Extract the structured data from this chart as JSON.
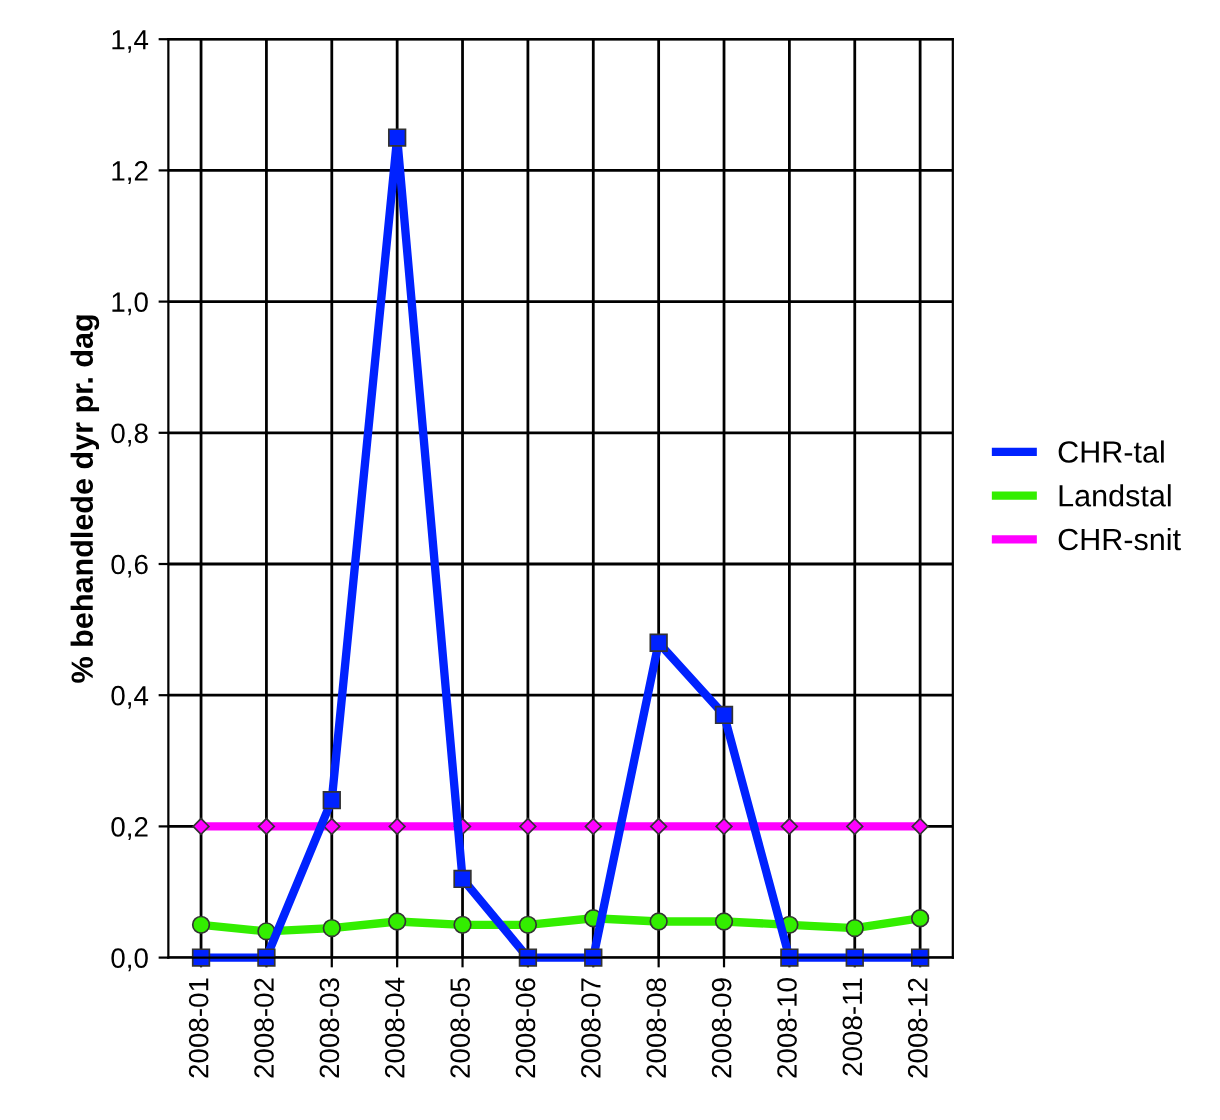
{
  "chart_data": {
    "type": "line",
    "ylabel": "% behandlede dyr pr. dag",
    "categories": [
      "2008-01",
      "2008-02",
      "2008-03",
      "2008-04",
      "2008-05",
      "2008-06",
      "2008-07",
      "2008-08",
      "2008-09",
      "2008-10",
      "2008-11",
      "2008-12"
    ],
    "series": [
      {
        "name": "CHR-tal",
        "color": "#0022ff",
        "marker": "square",
        "values": [
          0,
          0,
          0.24,
          1.25,
          0.12,
          0,
          0,
          0.48,
          0.37,
          0,
          0,
          0
        ]
      },
      {
        "name": "Landstal",
        "color": "#33ee00",
        "marker": "circle",
        "values": [
          0.05,
          0.04,
          0.045,
          0.055,
          0.05,
          0.05,
          0.06,
          0.055,
          0.055,
          0.05,
          0.045,
          0.06
        ]
      },
      {
        "name": "CHR-snit",
        "color": "#ff00ff",
        "marker": "diamond",
        "values": [
          0.2,
          0.2,
          0.2,
          0.2,
          0.2,
          0.2,
          0.2,
          0.2,
          0.2,
          0.2,
          0.2,
          0.2
        ]
      }
    ],
    "ylim": [
      0,
      1.4
    ],
    "yticks": [
      {
        "value": 0,
        "label": "0,0"
      },
      {
        "value": 0.2,
        "label": "0,2"
      },
      {
        "value": 0.4,
        "label": "0,4"
      },
      {
        "value": 0.6,
        "label": "0,6"
      },
      {
        "value": 0.8,
        "label": "0,8"
      },
      {
        "value": 1.0,
        "label": "1,0"
      },
      {
        "value": 1.2,
        "label": "1,2"
      },
      {
        "value": 1.4,
        "label": "1,4"
      }
    ],
    "grid": true,
    "legend": "right",
    "line_style": "solid"
  }
}
